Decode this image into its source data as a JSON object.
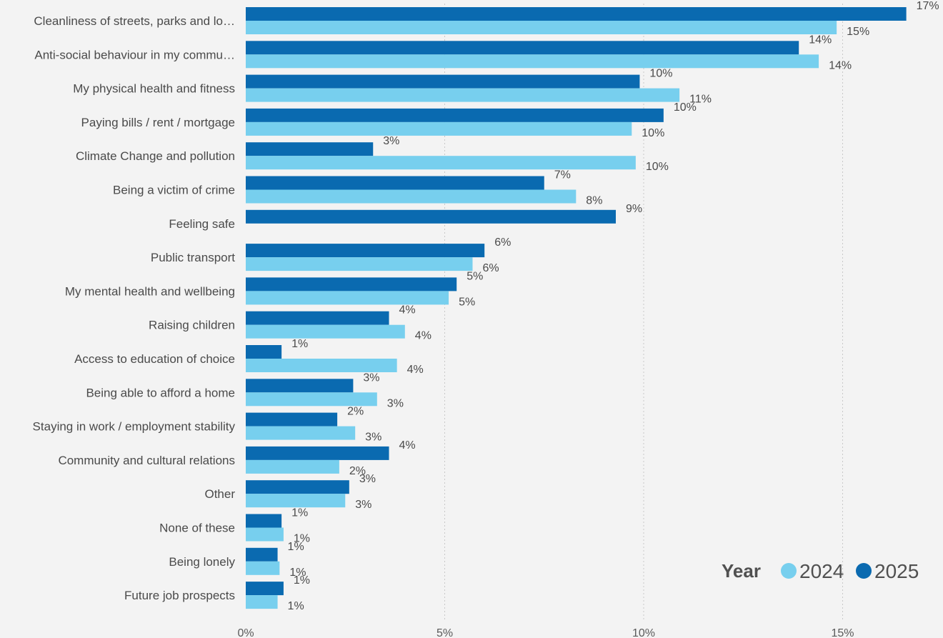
{
  "chart_data": {
    "type": "bar",
    "orientation": "horizontal",
    "categories": [
      "Cleanliness of streets, parks and lo…",
      "Anti-social behaviour in my commu…",
      "My physical health and fitness",
      "Paying bills / rent / mortgage",
      "Climate Change and pollution",
      "Being a victim of crime",
      "Feeling safe",
      "Public transport",
      "My mental health and wellbeing",
      "Raising children",
      "Access to education of choice",
      "Being able to afford a home",
      "Staying in work / employment stability",
      "Community and cultural relations",
      "Other",
      "None of these",
      "Being lonely",
      "Future job prospects"
    ],
    "series": [
      {
        "name": "2025",
        "color": "#0a6ab0",
        "values": [
          16.6,
          13.9,
          9.9,
          10.5,
          3.2,
          7.5,
          9.3,
          6.0,
          5.3,
          3.6,
          0.9,
          2.7,
          2.3,
          3.6,
          2.6,
          0.9,
          0.8,
          0.95
        ],
        "labels": [
          "17%",
          "14%",
          "10%",
          "10%",
          "3%",
          "7%",
          "9%",
          "6%",
          "5%",
          "4%",
          "1%",
          "3%",
          "2%",
          "4%",
          "3%",
          "1%",
          "1%",
          "1%"
        ]
      },
      {
        "name": "2024",
        "color": "#77cfee",
        "values": [
          14.85,
          14.4,
          10.9,
          9.7,
          9.8,
          8.3,
          null,
          5.7,
          5.1,
          4.0,
          3.8,
          3.3,
          2.75,
          2.35,
          2.5,
          0.95,
          0.85,
          0.8
        ],
        "labels": [
          "15%",
          "14%",
          "11%",
          "10%",
          "10%",
          "8%",
          "",
          "6%",
          "5%",
          "4%",
          "4%",
          "3%",
          "3%",
          "2%",
          "3%",
          "1%",
          "1%",
          "1%"
        ]
      }
    ],
    "xlim": [
      0,
      17.5
    ],
    "xticks": [
      0,
      5,
      10,
      15
    ],
    "xtick_labels": [
      "0%",
      "5%",
      "10%",
      "15%"
    ],
    "grid": true,
    "legend": {
      "title": "Year",
      "placement": "bottom-right",
      "entries": [
        {
          "name": "2024",
          "color": "#77cfee"
        },
        {
          "name": "2025",
          "color": "#0a6ab0"
        }
      ]
    },
    "title": "",
    "xlabel": "",
    "ylabel": ""
  }
}
